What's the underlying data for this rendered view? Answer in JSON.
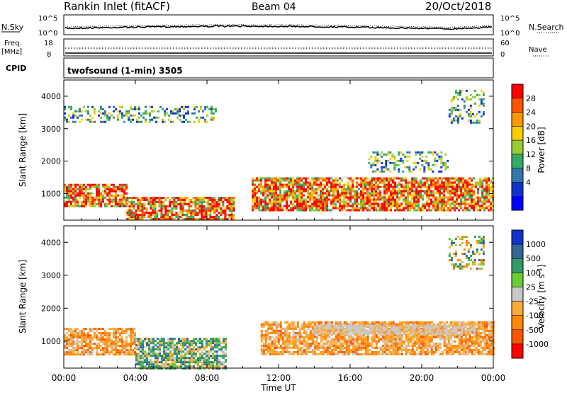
{
  "header": {
    "station": "Rankin Inlet (fitACF)",
    "beam": "Beam 04",
    "date": "20/Oct/2018"
  },
  "noise_panel": {
    "left_label": "N.Sky",
    "right_label": "N.Search",
    "left_ticks": [
      "10^5",
      "10^0"
    ],
    "right_ticks": [
      "10^5",
      "10^0"
    ]
  },
  "freq_panel": {
    "left_label_line1": "Freq.",
    "left_label_line2": "[MHz]",
    "right_label": "Nave",
    "left_ticks": [
      "18",
      "8"
    ],
    "right_ticks": [
      "60",
      "0"
    ]
  },
  "cpid_panel": {
    "label": "CPID",
    "program": "twofsound (1-min) 3505"
  },
  "chart_data": [
    {
      "type": "heatmap",
      "name_printed": "",
      "ylabel": "Slant Range [km]",
      "xlabel": "",
      "y_ticks": [
        1000,
        2000,
        3000,
        4000
      ],
      "ylim": [
        180,
        4500
      ],
      "xlim_hours": [
        0,
        24
      ],
      "colorbar": {
        "label": "Power [dB]",
        "ticks": [
          "28",
          "24",
          "20",
          "16",
          "12",
          "8",
          "4"
        ],
        "colors": [
          "#ff0000",
          "#ff5500",
          "#ff9900",
          "#ffcc00",
          "#99cc33",
          "#33aa66",
          "#3377aa",
          "#1133cc",
          "#0000ff"
        ]
      },
      "echo_regions": [
        {
          "from_h": 0.0,
          "to_h": 3.5,
          "range_km": [
            600,
            1300
          ],
          "value": "strong"
        },
        {
          "from_h": 3.5,
          "to_h": 9.5,
          "range_km": [
            180,
            900
          ],
          "value": "strong"
        },
        {
          "from_h": 10.5,
          "to_h": 24.0,
          "range_km": [
            500,
            1500
          ],
          "value": "strong"
        },
        {
          "from_h": 0.0,
          "to_h": 8.5,
          "range_km": [
            3200,
            3700
          ],
          "value": "weak"
        },
        {
          "from_h": 21.5,
          "to_h": 23.5,
          "range_km": [
            3200,
            4200
          ],
          "value": "weak"
        },
        {
          "from_h": 17.0,
          "to_h": 21.5,
          "range_km": [
            1700,
            2300
          ],
          "value": "weak"
        }
      ]
    },
    {
      "type": "heatmap",
      "name_printed": "",
      "ylabel": "Slant Range [km]",
      "xlabel": "Time UT",
      "x_ticks": [
        "00:00",
        "04:00",
        "08:00",
        "12:00",
        "16:00",
        "20:00",
        "00:00"
      ],
      "x_tick_hours": [
        0,
        4,
        8,
        12,
        16,
        20,
        24
      ],
      "y_ticks": [
        1000,
        2000,
        3000,
        4000
      ],
      "ylim": [
        180,
        4500
      ],
      "xlim_hours": [
        0,
        24
      ],
      "colorbar": {
        "label": "Velocity [m s^-1]",
        "ticks": [
          "1000",
          "500",
          "100",
          "25",
          "-25",
          "-100",
          "-500",
          "-1000"
        ],
        "colors": [
          "#1133cc",
          "#336699",
          "#339966",
          "#66cc33",
          "#c8c8c8",
          "#ffaa33",
          "#ff8800",
          "#ff5500",
          "#ff0000"
        ]
      },
      "echo_regions": [
        {
          "from_h": 0.0,
          "to_h": 4.0,
          "range_km": [
            600,
            1400
          ],
          "value": "negative"
        },
        {
          "from_h": 4.0,
          "to_h": 9.0,
          "range_km": [
            180,
            1100
          ],
          "value": "positive"
        },
        {
          "from_h": 11.0,
          "to_h": 24.0,
          "range_km": [
            600,
            1600
          ],
          "value": "negative"
        },
        {
          "from_h": 14.0,
          "to_h": 23.0,
          "range_km": [
            1200,
            1500
          ],
          "value": "ground"
        },
        {
          "from_h": 21.5,
          "to_h": 23.5,
          "range_km": [
            3200,
            4200
          ],
          "value": "mixed"
        }
      ]
    }
  ]
}
